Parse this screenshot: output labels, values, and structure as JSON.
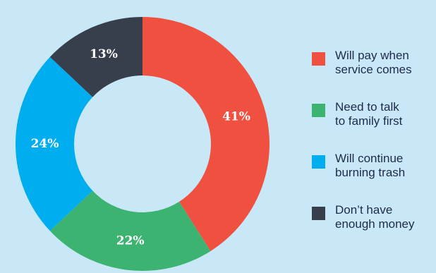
{
  "chart_data": {
    "type": "pie",
    "title": "",
    "donut": true,
    "slices": [
      {
        "label": "Will pay when service comes",
        "value": 41,
        "value_label": "41%",
        "color": "#f0503f"
      },
      {
        "label": "Need to talk to family first",
        "value": 22,
        "value_label": "22%",
        "color": "#3db372"
      },
      {
        "label": "Will continue burning trash",
        "value": 24,
        "value_label": "24%",
        "color": "#00aeef"
      },
      {
        "label": "Don’t have enough money",
        "value": 13,
        "value_label": "13%",
        "color": "#363f4b"
      }
    ],
    "legend_placement": "right",
    "background_color": "#c9e8f7"
  },
  "legend": {
    "items": [
      {
        "label": "Will pay when\nservice comes",
        "color": "#f0503f"
      },
      {
        "label": "Need to talk\nto family first",
        "color": "#3db372"
      },
      {
        "label": "Will continue\nburning trash",
        "color": "#00aeef"
      },
      {
        "label": "Don’t have\nenough money",
        "color": "#363f4b"
      }
    ]
  }
}
